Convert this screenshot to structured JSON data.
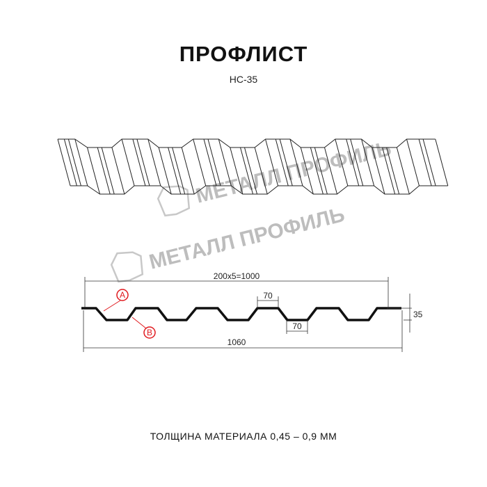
{
  "title": "ПРОФЛИСТ",
  "subtitle": "НС-35",
  "footer": "ТОЛЩИНА МАТЕРИАЛА 0,45 – 0,9 ММ",
  "watermark": "МЕТАЛЛ ПРОФИЛЬ",
  "dimensions": {
    "cover_width": "200x5=1000",
    "total_width": "1060",
    "top_width": "70",
    "bottom_width": "70",
    "height": "35"
  },
  "callouts": {
    "a": "A",
    "b": "B"
  },
  "colors": {
    "callout": "#e0191e",
    "line": "#111111",
    "watermark": "#bdbdbd"
  }
}
